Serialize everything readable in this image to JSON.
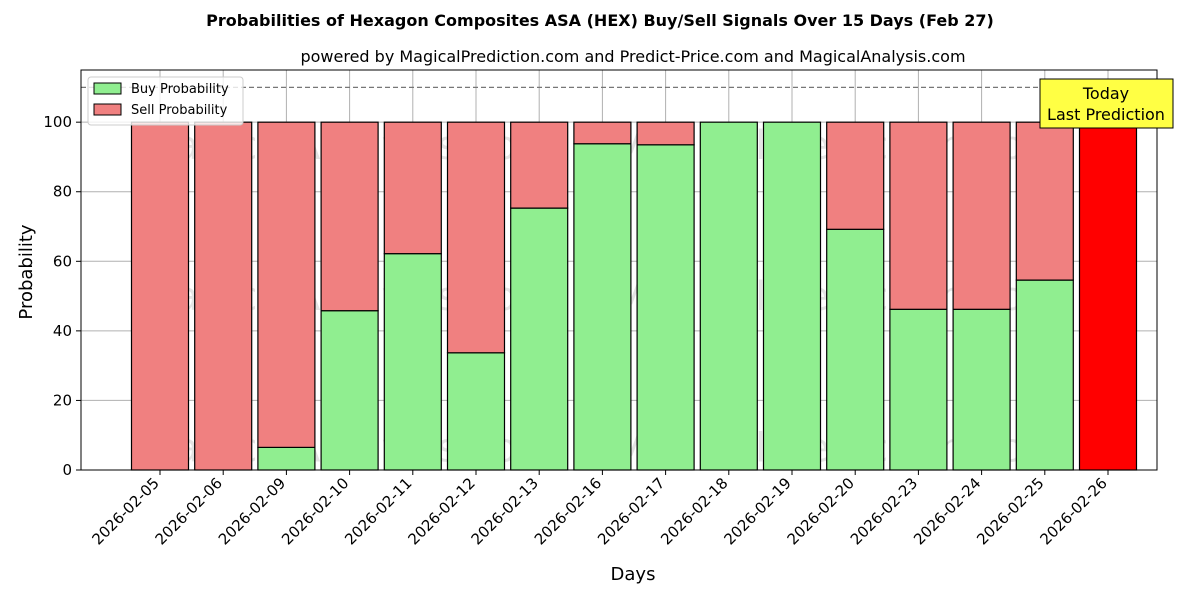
{
  "chart_data": {
    "type": "bar",
    "stacked": true,
    "title": "Probabilities of Hexagon Composites ASA (HEX) Buy/Sell Signals Over 15 Days (Feb 27)",
    "subtitle": "powered by MagicalPrediction.com and Predict-Price.com and MagicalAnalysis.com",
    "xlabel": "Days",
    "ylabel": "Probability",
    "ylim": [
      0,
      115
    ],
    "yticks": [
      0,
      20,
      40,
      60,
      80,
      100
    ],
    "grid": true,
    "legend_position": "top-left",
    "reference_line": 110,
    "categories": [
      "2026-02-05",
      "2026-02-06",
      "2026-02-09",
      "2026-02-10",
      "2026-02-11",
      "2026-02-12",
      "2026-02-13",
      "2026-02-16",
      "2026-02-17",
      "2026-02-18",
      "2026-02-19",
      "2026-02-20",
      "2026-02-23",
      "2026-02-24",
      "2026-02-25",
      "2026-02-26"
    ],
    "series": [
      {
        "name": "Buy Probability",
        "color": "#90ee90",
        "values": [
          0,
          0,
          6.5,
          45.8,
          62.2,
          33.7,
          75.3,
          93.8,
          93.5,
          100,
          100,
          69.2,
          46.2,
          46.2,
          54.6,
          0
        ]
      },
      {
        "name": "Sell Probability",
        "color": "#f08080",
        "values": [
          100,
          100,
          93.5,
          54.2,
          37.8,
          66.3,
          24.7,
          6.2,
          6.5,
          0,
          0,
          30.8,
          53.8,
          53.8,
          45.4,
          100
        ]
      }
    ],
    "highlight": {
      "index": 15,
      "color": "#ff0000"
    },
    "annotation": {
      "line1": "Today",
      "line2": "Last Prediction",
      "color": "#ffff44"
    },
    "watermarks": [
      "MagicalAnalysis.com",
      "MagicalPrediction.com"
    ]
  }
}
